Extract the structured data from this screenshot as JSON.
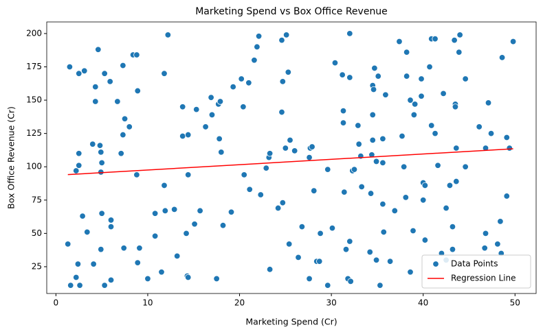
{
  "chart_data": {
    "type": "scatter",
    "title": "Marketing Spend vs Box Office Revenue",
    "x_label": "Marketing Spend (Cr)",
    "y_label": "Box Office Revenue (Cr)",
    "xlim": [
      -1,
      52.3
    ],
    "ylim": [
      4.9,
      208.7
    ],
    "xticks": [
      0,
      10,
      20,
      30,
      40,
      50
    ],
    "yticks": [
      25,
      50,
      75,
      100,
      125,
      150,
      175,
      200
    ],
    "legend": "lower right",
    "series": [
      {
        "name": "Data Points",
        "color": "#1f77b4",
        "x": [
          1.3,
          1.5,
          1.6,
          2.2,
          2.2,
          2.4,
          2.5,
          2.5,
          2.5,
          2.6,
          2.9,
          3.1,
          3.4,
          4.0,
          4.1,
          4.3,
          4.3,
          4.6,
          4.8,
          4.9,
          4.9,
          4.9,
          5.0,
          5.0,
          5.3,
          5.3,
          5.9,
          6.0,
          6.0,
          6.0,
          6.7,
          7.1,
          7.3,
          7.3,
          7.4,
          7.5,
          8.0,
          8.4,
          8.8,
          8.8,
          8.9,
          8.9,
          9.1,
          10.0,
          10.8,
          10.8,
          11.5,
          11.8,
          11.8,
          11.9,
          12.2,
          12.9,
          13.2,
          13.8,
          13.8,
          14.2,
          14.3,
          14.4,
          14.4,
          14.4,
          15.1,
          15.3,
          15.7,
          16.3,
          16.9,
          17.0,
          17.5,
          17.7,
          17.8,
          17.9,
          18.0,
          18.2,
          19.1,
          19.3,
          20.2,
          20.4,
          20.5,
          21.0,
          21.1,
          21.6,
          21.9,
          22.1,
          22.3,
          22.9,
          23.2,
          23.3,
          23.3,
          24.2,
          24.6,
          24.6,
          24.7,
          24.7,
          25.0,
          25.1,
          25.3,
          25.4,
          25.5,
          26.0,
          26.4,
          26.8,
          27.6,
          27.6,
          27.7,
          27.9,
          28.1,
          28.4,
          28.7,
          28.8,
          29.6,
          29.6,
          30.1,
          30.4,
          31.2,
          31.3,
          31.3,
          31.4,
          31.6,
          31.8,
          32.0,
          32.0,
          32.0,
          32.1,
          32.3,
          32.5,
          32.9,
          33.0,
          33.2,
          33.3,
          34.2,
          34.3,
          34.4,
          34.5,
          34.6,
          34.5,
          34.5,
          34.7,
          34.9,
          34.9,
          35.1,
          35.3,
          35.6,
          35.6,
          35.6,
          35.7,
          35.9,
          36.4,
          36.9,
          37.4,
          37.7,
          37.9,
          38.1,
          38.2,
          38.2,
          38.6,
          38.6,
          38.9,
          39.0,
          39.1,
          39.8,
          39.8,
          40.0,
          40.0,
          40.2,
          40.2,
          40.7,
          40.9,
          40.9,
          41.3,
          41.3,
          41.6,
          42.0,
          42.2,
          42.5,
          42.5,
          42.9,
          43.2,
          43.2,
          43.4,
          43.5,
          43.5,
          43.6,
          43.6,
          43.9,
          44.0,
          44.6,
          44.6,
          46.1,
          46.7,
          46.8,
          46.8,
          47.1,
          47.4,
          48.1,
          48.4,
          48.5,
          48.6,
          49.1,
          49.1,
          49.4,
          49.8
        ],
        "values": [
          42,
          175,
          11,
          17,
          97,
          27,
          170,
          110,
          101,
          11,
          63,
          172,
          51,
          117,
          27,
          160,
          149,
          188,
          116,
          38,
          96,
          111,
          103,
          65,
          11,
          170,
          164,
          60,
          55,
          15,
          149,
          110,
          124,
          176,
          39,
          136,
          130,
          184,
          184,
          94,
          28,
          157,
          39,
          16,
          65,
          48,
          21,
          170,
          86,
          67,
          199,
          68,
          33,
          145,
          123,
          50,
          18,
          124,
          94,
          17,
          57,
          143,
          67,
          130,
          152,
          139,
          16,
          147,
          121,
          149,
          111,
          56,
          66,
          160,
          166,
          145,
          94,
          163,
          83,
          180,
          190,
          198,
          79,
          99,
          107,
          110,
          23,
          69,
          195,
          141,
          164,
          73,
          114,
          199,
          171,
          42,
          120,
          112,
          32,
          55,
          107,
          16,
          114,
          115,
          82,
          29,
          29,
          50,
          98,
          11,
          54,
          178,
          169,
          142,
          133,
          81,
          38,
          16,
          167,
          200,
          44,
          14,
          97,
          98,
          131,
          117,
          108,
          85,
          36,
          80,
          109,
          161,
          158,
          139,
          120,
          174,
          30,
          104,
          168,
          11,
          121,
          103,
          72,
          51,
          154,
          29,
          67,
          194,
          123,
          100,
          77,
          168,
          186,
          21,
          150,
          52,
          139,
          147,
          153,
          166,
          88,
          75,
          86,
          45,
          175,
          196,
          131,
          196,
          125,
          101,
          35,
          155,
          30,
          69,
          86,
          38,
          55,
          195,
          147,
          145,
          89,
          114,
          186,
          199,
          166,
          100,
          130,
          39,
          114,
          50,
          148,
          125,
          42,
          59,
          35,
          182,
          78,
          122,
          114,
          194
        ]
      },
      {
        "name": "Regression Line",
        "color": "#ff0000",
        "x": [
          1.3,
          49.8
        ],
        "values": [
          94.1,
          113.5
        ]
      }
    ]
  }
}
